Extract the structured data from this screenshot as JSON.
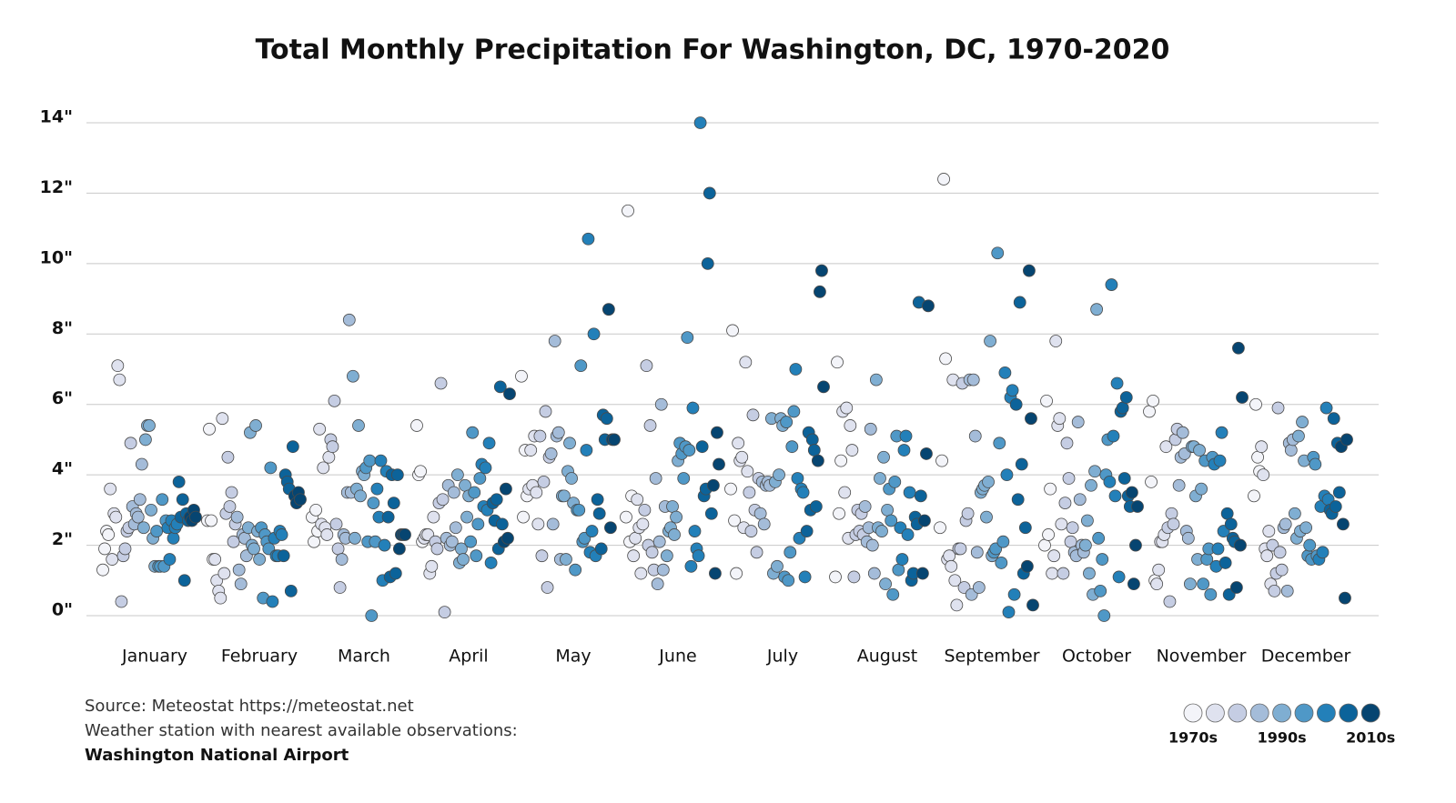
{
  "chart_data": {
    "type": "scatter",
    "title": "Total Monthly Precipitation For Washington, DC, 1970-2020",
    "notes": [
      "Source: Meteostat https://meteostat.net",
      "Weather station with nearest available observations:",
      "Washington National Airport"
    ],
    "ylim": [
      0,
      14
    ],
    "yticks": [
      {
        "value": 0,
        "label": "0\""
      },
      {
        "value": 2,
        "label": "2\""
      },
      {
        "value": 4,
        "label": "4\""
      },
      {
        "value": 6,
        "label": "6\""
      },
      {
        "value": 8,
        "label": "8\""
      },
      {
        "value": 10,
        "label": "10\""
      },
      {
        "value": 12,
        "label": "12\""
      },
      {
        "value": 14,
        "label": "14\""
      }
    ],
    "grid": true,
    "x": [
      1970,
      1971,
      1972,
      1973,
      1974,
      1975,
      1976,
      1977,
      1978,
      1979,
      1980,
      1981,
      1982,
      1983,
      1984,
      1985,
      1986,
      1987,
      1988,
      1989,
      1990,
      1991,
      1992,
      1993,
      1994,
      1995,
      1996,
      1997,
      1998,
      1999,
      2000,
      2001,
      2002,
      2003,
      2004,
      2005,
      2006,
      2007,
      2008,
      2009,
      2010,
      2011,
      2012,
      2013,
      2014,
      2015,
      2016,
      2017,
      2018,
      2019,
      2020
    ],
    "legend_colors": [
      "#f3f4f9",
      "#dfe2ef",
      "#c5cde3",
      "#a4bcd9",
      "#7faed2",
      "#4f98c7",
      "#2380b9",
      "#0c639a",
      "#064571"
    ],
    "legend_labels": [
      "1970s",
      "1990s",
      "2010s"
    ],
    "series": [
      {
        "name": "January",
        "values": [
          1.3,
          1.9,
          2.4,
          2.3,
          3.6,
          1.6,
          2.9,
          2.8,
          7.1,
          6.7,
          0.4,
          1.7,
          1.9,
          2.4,
          2.5,
          4.9,
          3.1,
          2.6,
          2.9,
          2.8,
          3.3,
          4.3,
          2.5,
          5.0,
          5.4,
          5.4,
          3.0,
          2.2,
          1.4,
          2.4,
          1.4,
          1.4,
          3.3,
          1.4,
          2.7,
          2.5,
          1.6,
          2.7,
          2.2,
          2.5,
          2.6,
          3.8,
          2.8,
          3.3,
          1.0,
          2.9,
          2.7,
          2.8,
          2.7,
          3.0,
          2.8
        ]
      },
      {
        "name": "February",
        "values": [
          2.7,
          5.3,
          2.7,
          1.6,
          1.6,
          1.0,
          0.7,
          0.5,
          5.6,
          1.2,
          2.9,
          4.5,
          3.1,
          3.5,
          2.1,
          2.6,
          2.8,
          1.3,
          0.9,
          2.3,
          2.2,
          1.7,
          2.5,
          5.2,
          2.0,
          1.9,
          5.4,
          2.4,
          1.6,
          2.5,
          0.5,
          2.3,
          2.1,
          1.9,
          4.2,
          0.4,
          2.2,
          1.7,
          1.7,
          2.4,
          2.3,
          1.7,
          4.0,
          3.8,
          3.6,
          0.7,
          4.8,
          3.4,
          3.2,
          3.5,
          3.3
        ]
      },
      {
        "name": "March",
        "values": [
          2.8,
          2.1,
          3.0,
          2.4,
          5.3,
          2.6,
          4.2,
          2.5,
          2.3,
          4.5,
          5.0,
          4.8,
          6.1,
          2.6,
          1.9,
          0.8,
          1.6,
          2.3,
          2.2,
          3.5,
          8.4,
          3.5,
          6.8,
          2.2,
          3.6,
          5.4,
          3.4,
          4.1,
          4.0,
          4.2,
          2.1,
          4.4,
          0.0,
          3.2,
          2.1,
          3.6,
          2.8,
          4.4,
          1.0,
          2.0,
          4.1,
          2.8,
          1.1,
          4.0,
          3.2,
          1.2,
          4.0,
          1.9,
          2.3,
          2.3,
          2.3
        ]
      },
      {
        "name": "April",
        "values": [
          5.4,
          4.0,
          4.1,
          2.1,
          2.2,
          2.3,
          2.3,
          1.2,
          1.4,
          2.8,
          2.1,
          1.9,
          3.2,
          6.6,
          3.3,
          0.1,
          2.2,
          3.7,
          2.0,
          2.1,
          3.5,
          2.5,
          4.0,
          1.5,
          1.9,
          1.6,
          3.7,
          2.8,
          3.4,
          2.1,
          5.2,
          3.5,
          1.7,
          2.6,
          3.9,
          4.3,
          3.1,
          4.2,
          3.0,
          4.9,
          1.5,
          3.2,
          2.7,
          3.3,
          1.9,
          6.5,
          2.6,
          2.1,
          3.6,
          2.2,
          6.3
        ]
      },
      {
        "name": "May",
        "values": [
          6.8,
          2.8,
          4.7,
          3.4,
          3.6,
          4.7,
          3.7,
          5.1,
          3.5,
          2.6,
          5.1,
          1.7,
          3.8,
          5.8,
          0.8,
          4.5,
          4.6,
          2.6,
          7.8,
          5.1,
          5.2,
          1.6,
          3.4,
          3.4,
          1.6,
          4.1,
          4.9,
          3.9,
          3.2,
          1.3,
          3.0,
          3.0,
          7.1,
          2.1,
          2.2,
          4.7,
          10.7,
          1.8,
          2.4,
          8.0,
          1.7,
          3.3,
          2.9,
          1.9,
          5.7,
          5.0,
          5.6,
          8.7,
          2.5,
          5.0,
          5.0
        ]
      },
      {
        "name": "June",
        "values": [
          2.8,
          11.5,
          2.1,
          3.4,
          1.7,
          2.2,
          3.3,
          2.5,
          1.2,
          2.6,
          3.0,
          7.1,
          2.0,
          5.4,
          1.8,
          1.3,
          3.9,
          0.9,
          2.1,
          6.0,
          1.3,
          3.1,
          1.7,
          2.4,
          2.5,
          3.1,
          2.3,
          2.8,
          4.4,
          4.9,
          4.6,
          3.9,
          4.8,
          7.9,
          4.7,
          1.4,
          5.9,
          2.4,
          1.9,
          1.7,
          14.0,
          4.8,
          3.4,
          3.6,
          10.0,
          12.0,
          2.9,
          3.7,
          1.2,
          5.2,
          4.3
        ]
      },
      {
        "name": "July",
        "values": [
          3.6,
          8.1,
          2.7,
          1.2,
          4.9,
          4.4,
          4.5,
          2.5,
          7.2,
          4.1,
          3.5,
          2.4,
          5.7,
          3.0,
          1.8,
          3.9,
          2.9,
          3.8,
          2.6,
          3.7,
          3.8,
          3.7,
          5.6,
          1.2,
          3.8,
          1.4,
          4.0,
          5.6,
          5.4,
          1.1,
          5.5,
          1.0,
          1.8,
          4.8,
          5.8,
          7.0,
          3.9,
          2.2,
          3.6,
          3.5,
          1.1,
          2.4,
          5.2,
          3.0,
          5.0,
          4.7,
          3.1,
          4.4,
          9.2,
          9.8,
          6.5
        ]
      },
      {
        "name": "August",
        "values": [
          1.1,
          7.2,
          2.9,
          4.4,
          5.8,
          3.5,
          5.9,
          2.2,
          5.4,
          4.7,
          1.1,
          2.3,
          3.0,
          2.4,
          2.9,
          2.3,
          3.1,
          2.1,
          2.5,
          5.3,
          2.0,
          1.2,
          6.7,
          2.5,
          3.9,
          2.4,
          4.5,
          0.9,
          3.0,
          3.6,
          2.7,
          0.6,
          3.8,
          5.1,
          1.3,
          2.5,
          1.6,
          4.7,
          5.1,
          2.3,
          3.5,
          1.0,
          1.2,
          2.8,
          2.6,
          8.9,
          3.4,
          1.2,
          2.7,
          4.6,
          8.8
        ]
      },
      {
        "name": "September",
        "values": [
          2.5,
          4.4,
          12.4,
          7.3,
          1.6,
          1.7,
          1.4,
          6.7,
          1.0,
          0.3,
          1.9,
          1.9,
          6.6,
          0.8,
          2.7,
          2.9,
          6.7,
          0.6,
          6.7,
          5.1,
          1.8,
          0.8,
          3.5,
          3.6,
          3.7,
          2.8,
          3.8,
          7.8,
          1.7,
          1.8,
          1.9,
          10.3,
          4.9,
          1.5,
          2.1,
          6.9,
          4.0,
          0.1,
          6.2,
          6.4,
          0.6,
          6.0,
          3.3,
          8.9,
          4.3,
          1.2,
          2.5,
          1.4,
          9.8,
          5.6,
          0.3
        ]
      },
      {
        "name": "October",
        "values": [
          2.0,
          6.1,
          2.3,
          3.6,
          1.2,
          1.7,
          7.8,
          5.4,
          5.6,
          2.6,
          1.2,
          3.2,
          4.9,
          3.9,
          2.1,
          2.5,
          1.8,
          1.7,
          5.5,
          3.3,
          2.0,
          1.8,
          2.0,
          2.7,
          1.2,
          3.7,
          0.6,
          4.1,
          8.7,
          2.2,
          0.7,
          1.6,
          0.0,
          4.0,
          5.0,
          3.8,
          9.4,
          5.1,
          3.4,
          6.6,
          1.1,
          5.8,
          5.9,
          3.9,
          6.2,
          3.4,
          3.1,
          3.5,
          0.9,
          2.0,
          3.1
        ]
      },
      {
        "name": "November",
        "values": [
          5.8,
          3.8,
          6.1,
          1.0,
          0.9,
          1.3,
          2.1,
          2.1,
          2.3,
          4.8,
          2.5,
          0.4,
          2.9,
          2.6,
          5.0,
          5.3,
          3.7,
          4.5,
          5.2,
          4.6,
          2.4,
          2.2,
          0.9,
          4.8,
          4.8,
          3.4,
          1.6,
          4.7,
          3.6,
          0.9,
          4.4,
          1.6,
          1.9,
          0.6,
          4.5,
          4.3,
          1.4,
          1.9,
          4.4,
          5.2,
          2.4,
          1.5,
          2.9,
          0.6,
          2.6,
          2.2,
          2.1,
          0.8,
          7.6,
          2.0,
          6.2
        ]
      },
      {
        "name": "December",
        "values": [
          3.4,
          6.0,
          4.5,
          4.1,
          4.8,
          4.0,
          1.9,
          1.7,
          2.4,
          0.9,
          2.0,
          0.7,
          1.2,
          5.9,
          1.8,
          1.3,
          2.5,
          2.6,
          0.7,
          4.9,
          4.7,
          5.0,
          2.9,
          2.2,
          5.1,
          2.4,
          5.5,
          4.4,
          2.5,
          1.7,
          2.0,
          1.6,
          4.5,
          4.3,
          1.7,
          1.6,
          3.1,
          1.8,
          3.4,
          5.9,
          3.3,
          3.0,
          2.9,
          5.6,
          3.1,
          4.9,
          3.5,
          4.8,
          2.6,
          0.5,
          5.0
        ]
      }
    ]
  }
}
